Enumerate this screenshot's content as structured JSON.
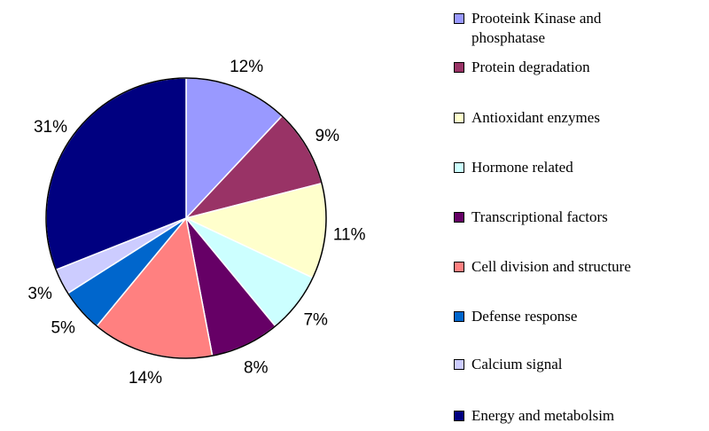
{
  "chart_data": {
    "type": "pie",
    "title": "",
    "start_angle_deg": 0,
    "direction": "clockwise",
    "slice_stroke": "#ffffff",
    "legend_position": "right",
    "slices": [
      {
        "name": "Prooteink Kinase and phosphatase",
        "value": 12,
        "label": "12%",
        "color": "#9999ff"
      },
      {
        "name": "Protein degradation",
        "value": 9,
        "label": "9%",
        "color": "#993366"
      },
      {
        "name": "Antioxidant enzymes",
        "value": 11,
        "label": "11%",
        "color": "#ffffcc"
      },
      {
        "name": "Hormone related",
        "value": 7,
        "label": "7%",
        "color": "#ccffff"
      },
      {
        "name": "Transcriptional factors",
        "value": 8,
        "label": "8%",
        "color": "#660066"
      },
      {
        "name": "Cell division and structure",
        "value": 14,
        "label": "14%",
        "color": "#ff8080"
      },
      {
        "name": "Defense response",
        "value": 5,
        "label": "5%",
        "color": "#0066cc"
      },
      {
        "name": "Calcium signal",
        "value": 3,
        "label": "3%",
        "color": "#ccccff"
      },
      {
        "name": "Energy and metabolsim",
        "value": 31,
        "label": "31%",
        "color": "#000080"
      }
    ]
  }
}
